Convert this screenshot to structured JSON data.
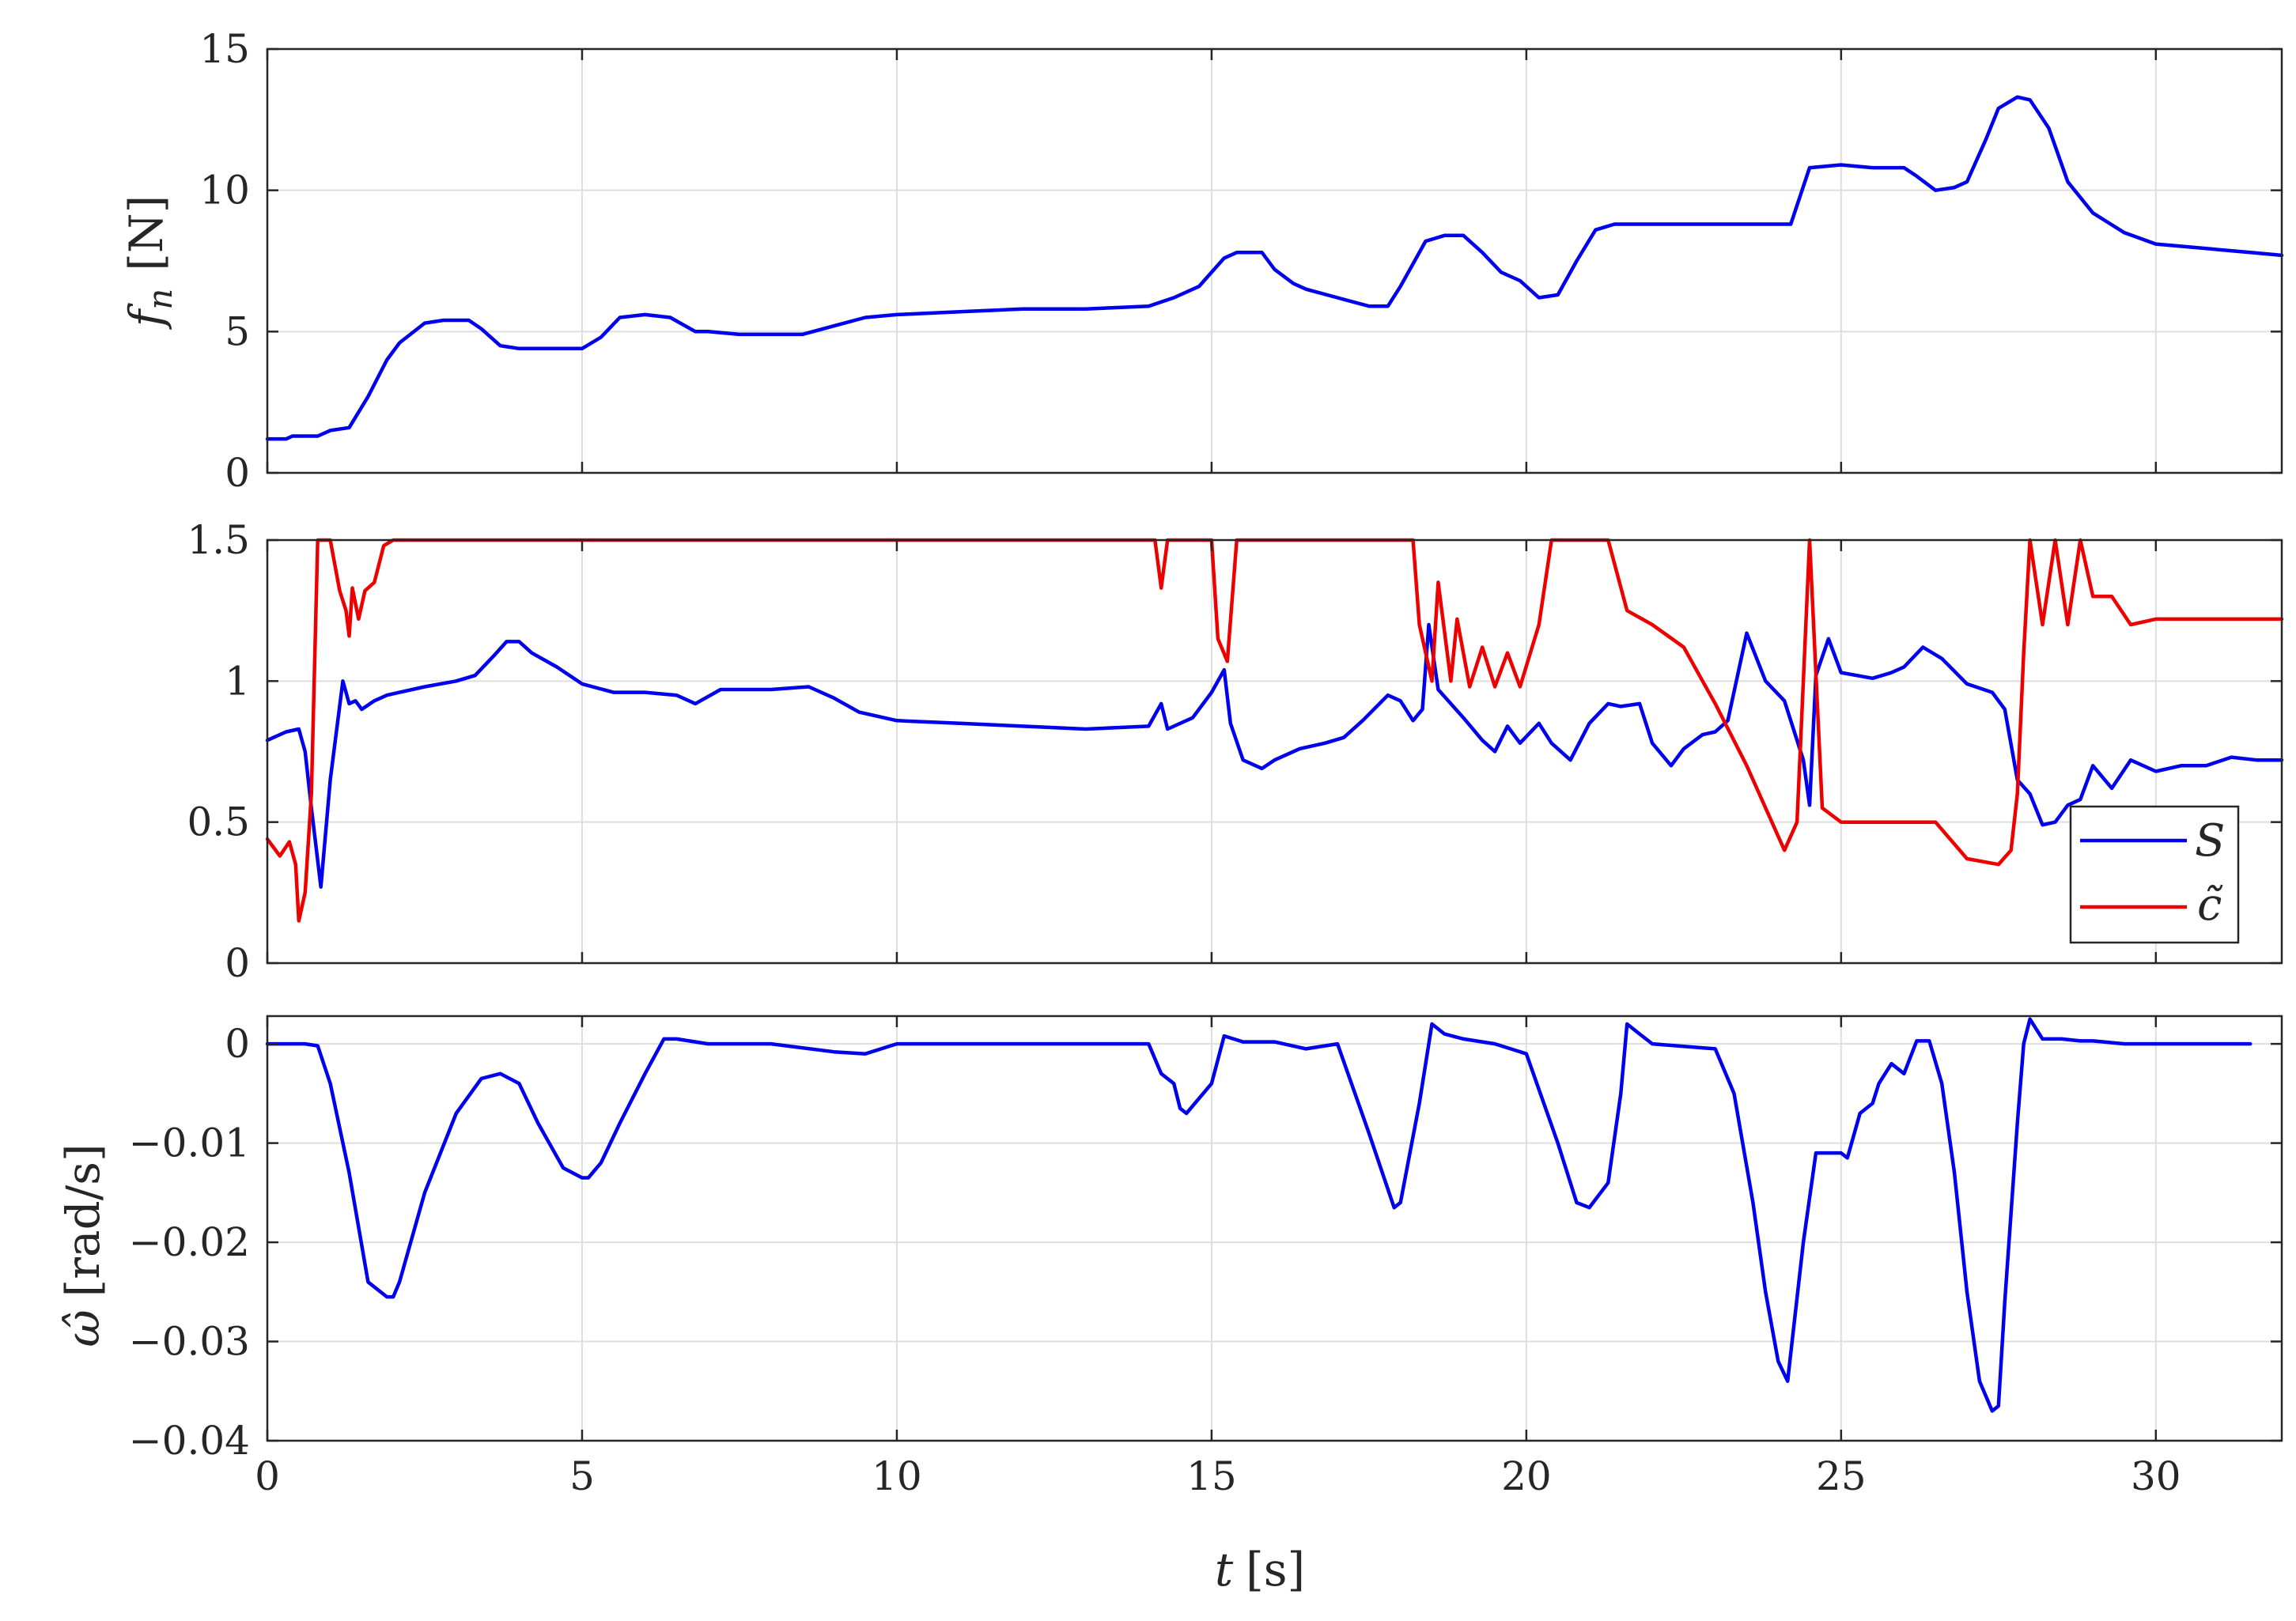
{
  "chart_data": [
    {
      "type": "line",
      "panel": "top",
      "ylabel": "f_n [N]",
      "ylabel_parts": {
        "symbol": "f",
        "subscript": "n",
        "unit": "[N]"
      },
      "xlim": [
        0,
        32
      ],
      "ylim": [
        0,
        15
      ],
      "xticks": [
        0,
        5,
        10,
        15,
        20,
        25,
        30
      ],
      "yticks": [
        0,
        5,
        10,
        15
      ],
      "ytick_labels": [
        "0",
        "5",
        "10",
        "15"
      ],
      "grid": true,
      "series": [
        {
          "color": "#0000ee",
          "x": [
            0,
            0.3,
            0.4,
            0.8,
            1.0,
            1.3,
            1.6,
            1.9,
            2.1,
            2.5,
            2.8,
            3.2,
            3.4,
            3.7,
            4.0,
            4.5,
            5.0,
            5.3,
            5.6,
            6.0,
            6.4,
            6.8,
            7.0,
            7.5,
            8.0,
            8.5,
            9.0,
            9.5,
            10.0,
            11.0,
            12.0,
            13.0,
            14.0,
            14.4,
            14.8,
            15.2,
            15.4,
            15.8,
            16.0,
            16.3,
            16.5,
            17.0,
            17.5,
            17.8,
            18.0,
            18.4,
            18.7,
            19.0,
            19.3,
            19.6,
            19.9,
            20.2,
            20.5,
            20.8,
            21.1,
            21.4,
            21.8,
            22.5,
            23.0,
            23.5,
            24.0,
            24.2,
            24.5,
            25.0,
            25.5,
            26.0,
            26.2,
            26.5,
            26.8,
            27.0,
            27.3,
            27.5,
            27.8,
            28.0,
            28.3,
            28.6,
            29.0,
            29.5,
            30.0,
            30.5,
            31.0,
            31.5,
            32.0
          ],
          "y": [
            1.2,
            1.2,
            1.3,
            1.3,
            1.5,
            1.6,
            2.7,
            4.0,
            4.6,
            5.3,
            5.4,
            5.4,
            5.1,
            4.5,
            4.4,
            4.4,
            4.4,
            4.8,
            5.5,
            5.6,
            5.5,
            5.0,
            5.0,
            4.9,
            4.9,
            4.9,
            5.2,
            5.5,
            5.6,
            5.7,
            5.8,
            5.8,
            5.9,
            6.2,
            6.6,
            7.6,
            7.8,
            7.8,
            7.2,
            6.7,
            6.5,
            6.2,
            5.9,
            5.9,
            6.6,
            8.2,
            8.4,
            8.4,
            7.8,
            7.1,
            6.8,
            6.2,
            6.3,
            7.5,
            8.6,
            8.8,
            8.8,
            8.8,
            8.8,
            8.8,
            8.8,
            8.8,
            10.8,
            10.9,
            10.8,
            10.8,
            10.5,
            10.0,
            10.1,
            10.3,
            11.8,
            12.9,
            13.3,
            13.2,
            12.2,
            10.3,
            9.2,
            8.5,
            8.1,
            8.0,
            7.9,
            7.8,
            7.7
          ]
        }
      ]
    },
    {
      "type": "line",
      "panel": "middle",
      "ylabel": "",
      "xlim": [
        0,
        32
      ],
      "ylim": [
        0,
        1.5
      ],
      "xticks": [
        0,
        5,
        10,
        15,
        20,
        25,
        30
      ],
      "yticks": [
        0,
        0.5,
        1,
        1.5
      ],
      "ytick_labels": [
        "0",
        "0.5",
        "1",
        "1.5"
      ],
      "grid": true,
      "legend": {
        "position": "bottom-right",
        "entries": [
          "S",
          "c̃"
        ]
      },
      "series": [
        {
          "name": "S",
          "color": "#0000ee",
          "x": [
            0,
            0.3,
            0.5,
            0.6,
            0.7,
            0.85,
            1.0,
            1.2,
            1.3,
            1.4,
            1.5,
            1.7,
            1.9,
            2.1,
            2.5,
            3.0,
            3.3,
            3.6,
            3.8,
            4.0,
            4.2,
            4.6,
            5.0,
            5.5,
            6.0,
            6.5,
            6.8,
            7.2,
            7.6,
            8.0,
            8.6,
            9.0,
            9.4,
            10.0,
            11.0,
            12.0,
            13.0,
            14.0,
            14.2,
            14.3,
            14.7,
            15.0,
            15.2,
            15.3,
            15.5,
            15.8,
            16.0,
            16.4,
            16.8,
            17.1,
            17.4,
            17.8,
            18.0,
            18.2,
            18.35,
            18.45,
            18.6,
            19.0,
            19.3,
            19.5,
            19.7,
            19.9,
            20.2,
            20.4,
            20.7,
            21.0,
            21.3,
            21.5,
            21.8,
            22.0,
            22.3,
            22.5,
            22.8,
            23.0,
            23.2,
            23.5,
            23.8,
            24.1,
            24.4,
            24.5,
            24.6,
            24.8,
            25.0,
            25.5,
            25.8,
            26.0,
            26.3,
            26.6,
            27.0,
            27.4,
            27.6,
            27.8,
            28.0,
            28.2,
            28.4,
            28.6,
            28.8,
            29.0,
            29.3,
            29.6,
            30.0,
            30.4,
            30.8,
            31.2,
            31.6,
            32.0
          ],
          "y": [
            0.79,
            0.82,
            0.83,
            0.75,
            0.55,
            0.27,
            0.65,
            1.0,
            0.92,
            0.93,
            0.9,
            0.93,
            0.95,
            0.96,
            0.98,
            1.0,
            1.02,
            1.09,
            1.14,
            1.14,
            1.1,
            1.05,
            0.99,
            0.96,
            0.96,
            0.95,
            0.92,
            0.97,
            0.97,
            0.97,
            0.98,
            0.94,
            0.89,
            0.86,
            0.85,
            0.84,
            0.83,
            0.84,
            0.92,
            0.83,
            0.87,
            0.96,
            1.04,
            0.85,
            0.72,
            0.69,
            0.72,
            0.76,
            0.78,
            0.8,
            0.86,
            0.95,
            0.93,
            0.86,
            0.9,
            1.2,
            0.97,
            0.87,
            0.79,
            0.75,
            0.84,
            0.78,
            0.85,
            0.78,
            0.72,
            0.85,
            0.92,
            0.91,
            0.92,
            0.78,
            0.7,
            0.76,
            0.81,
            0.82,
            0.86,
            1.17,
            1.0,
            0.93,
            0.72,
            0.56,
            1.02,
            1.15,
            1.03,
            1.01,
            1.03,
            1.05,
            1.12,
            1.08,
            0.99,
            0.96,
            0.9,
            0.65,
            0.6,
            0.49,
            0.5,
            0.56,
            0.58,
            0.7,
            0.62,
            0.72,
            0.68,
            0.7,
            0.7,
            0.73,
            0.72,
            0.72
          ]
        },
        {
          "name": "c̃",
          "color": "#ee0000",
          "x": [
            0,
            0.2,
            0.35,
            0.45,
            0.5,
            0.6,
            0.7,
            0.8,
            0.9,
            1.0,
            1.15,
            1.25,
            1.3,
            1.35,
            1.45,
            1.55,
            1.7,
            1.85,
            2.0,
            2.1,
            2.5,
            14.0,
            14.1,
            14.2,
            14.3,
            14.4,
            14.8,
            15.0,
            15.1,
            15.25,
            15.4,
            18.0,
            18.2,
            18.3,
            18.5,
            18.6,
            18.8,
            18.9,
            19.1,
            19.3,
            19.5,
            19.7,
            19.9,
            20.2,
            20.4,
            21.3,
            21.6,
            22.0,
            22.5,
            22.8,
            23.0,
            23.5,
            24.1,
            24.3,
            24.4,
            24.5,
            24.7,
            25.0,
            25.5,
            26.0,
            26.5,
            27.0,
            27.5,
            27.7,
            27.8,
            27.9,
            28.0,
            28.2,
            28.4,
            28.6,
            28.8,
            29.0,
            29.3,
            29.6,
            30.0,
            30.5,
            31.0,
            31.5,
            32.0
          ],
          "y": [
            0.44,
            0.38,
            0.43,
            0.35,
            0.15,
            0.25,
            0.6,
            1.5,
            1.5,
            1.5,
            1.32,
            1.25,
            1.16,
            1.33,
            1.22,
            1.32,
            1.35,
            1.48,
            1.5,
            1.5,
            1.5,
            1.5,
            1.5,
            1.33,
            1.5,
            1.5,
            1.5,
            1.5,
            1.15,
            1.07,
            1.5,
            1.5,
            1.5,
            1.2,
            1.0,
            1.35,
            1.0,
            1.22,
            0.98,
            1.12,
            0.98,
            1.1,
            0.98,
            1.2,
            1.5,
            1.5,
            1.25,
            1.2,
            1.12,
            1.0,
            0.92,
            0.7,
            0.4,
            0.5,
            1.0,
            1.5,
            0.55,
            0.5,
            0.5,
            0.5,
            0.5,
            0.37,
            0.35,
            0.4,
            0.6,
            1.1,
            1.5,
            1.2,
            1.5,
            1.2,
            1.5,
            1.3,
            1.3,
            1.2,
            1.22,
            1.22,
            1.22,
            1.22,
            1.22
          ]
        }
      ]
    },
    {
      "type": "line",
      "panel": "bottom",
      "ylabel": "ω̂ [rad/s]",
      "ylabel_parts": {
        "symbol": "ω̂",
        "unit": "[rad/s]"
      },
      "xlabel": "t [s]",
      "xlabel_parts": {
        "symbol": "t",
        "unit": "[s]"
      },
      "xlim": [
        0,
        32
      ],
      "ylim": [
        -0.04,
        0.0028
      ],
      "xticks": [
        0,
        5,
        10,
        15,
        20,
        25,
        30
      ],
      "xtick_labels": [
        "0",
        "5",
        "10",
        "15",
        "20",
        "25",
        "30"
      ],
      "yticks": [
        0,
        -0.01,
        -0.02,
        -0.03,
        -0.04
      ],
      "ytick_labels": [
        "0",
        "−0.01",
        "−0.02",
        "−0.03",
        "−0.04"
      ],
      "grid": true,
      "series": [
        {
          "color": "#0000ee",
          "x": [
            0,
            0.6,
            0.8,
            1.0,
            1.3,
            1.6,
            1.9,
            2.0,
            2.1,
            2.5,
            3.0,
            3.4,
            3.7,
            4.0,
            4.3,
            4.7,
            5.0,
            5.1,
            5.3,
            5.6,
            6.0,
            6.3,
            6.5,
            7.0,
            8.0,
            9.0,
            9.5,
            10.0,
            11.0,
            12.0,
            13.0,
            14.0,
            14.2,
            14.4,
            14.5,
            14.6,
            15.0,
            15.2,
            15.5,
            16.0,
            16.5,
            17.0,
            17.5,
            17.9,
            18.0,
            18.3,
            18.5,
            18.7,
            19.0,
            19.5,
            20.0,
            20.5,
            20.8,
            21.0,
            21.3,
            21.5,
            21.6,
            21.8,
            22.0,
            23.0,
            23.3,
            23.6,
            23.8,
            24.0,
            24.15,
            24.4,
            24.6,
            25.0,
            25.1,
            25.3,
            25.5,
            25.6,
            25.8,
            26.0,
            26.2,
            26.4,
            26.6,
            26.8,
            27.0,
            27.2,
            27.4,
            27.5,
            27.6,
            27.8,
            27.9,
            28.0,
            28.2,
            28.5,
            28.8,
            29.0,
            29.5,
            30.0,
            30.5,
            31.0,
            31.5
          ],
          "y": [
            0,
            0,
            -0.0002,
            -0.004,
            -0.013,
            -0.024,
            -0.0255,
            -0.0255,
            -0.024,
            -0.015,
            -0.007,
            -0.0035,
            -0.003,
            -0.004,
            -0.008,
            -0.0125,
            -0.0135,
            -0.0135,
            -0.012,
            -0.008,
            -0.003,
            0.0005,
            0.0005,
            0,
            0,
            -0.0008,
            -0.001,
            0,
            0,
            0,
            0,
            0,
            -0.003,
            -0.004,
            -0.0065,
            -0.007,
            -0.004,
            0.0008,
            0.0002,
            0.0002,
            -0.0005,
            0,
            -0.009,
            -0.0165,
            -0.016,
            -0.006,
            0.002,
            0.001,
            0.0005,
            0,
            -0.001,
            -0.01,
            -0.016,
            -0.0165,
            -0.014,
            -0.005,
            0.002,
            0.001,
            0,
            -0.0005,
            -0.005,
            -0.016,
            -0.025,
            -0.032,
            -0.034,
            -0.02,
            -0.011,
            -0.011,
            -0.0115,
            -0.007,
            -0.006,
            -0.004,
            -0.002,
            -0.003,
            0.0003,
            0.0003,
            -0.004,
            -0.013,
            -0.025,
            -0.034,
            -0.037,
            -0.0365,
            -0.026,
            -0.008,
            0,
            0.0025,
            0.0005,
            0.0005,
            0.0003,
            0.0003,
            0,
            0,
            0,
            0,
            0
          ]
        }
      ]
    }
  ]
}
